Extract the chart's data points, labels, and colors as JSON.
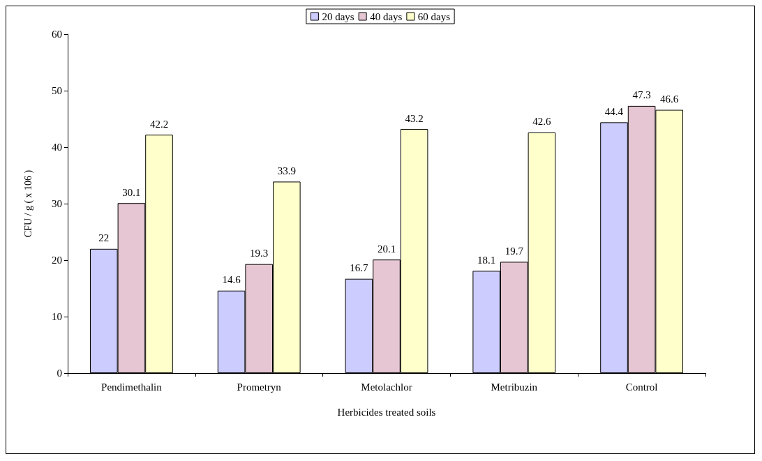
{
  "chart_data": {
    "type": "bar",
    "xlabel": "Herbicides treated soils",
    "ylabel": "CFU / g ( x 106 )",
    "categories": [
      "Pendimethalin",
      "Prometryn",
      "Metolachlor",
      "Metribuzin",
      "Control"
    ],
    "series": [
      {
        "name": "20 days",
        "color": "#ccccff",
        "values": [
          22,
          14.6,
          16.7,
          18.1,
          44.4
        ]
      },
      {
        "name": "40 days",
        "color": "#e6c6d2",
        "values": [
          30.1,
          19.3,
          20.1,
          19.7,
          47.3
        ]
      },
      {
        "name": "60 days",
        "color": "#ffffcc",
        "values": [
          42.2,
          33.9,
          43.2,
          42.6,
          46.6
        ]
      }
    ],
    "ylim": [
      0,
      60
    ],
    "yticks": [
      0,
      10,
      20,
      30,
      40,
      50,
      60
    ],
    "grid": false,
    "legend": "top",
    "data_labels": true
  }
}
